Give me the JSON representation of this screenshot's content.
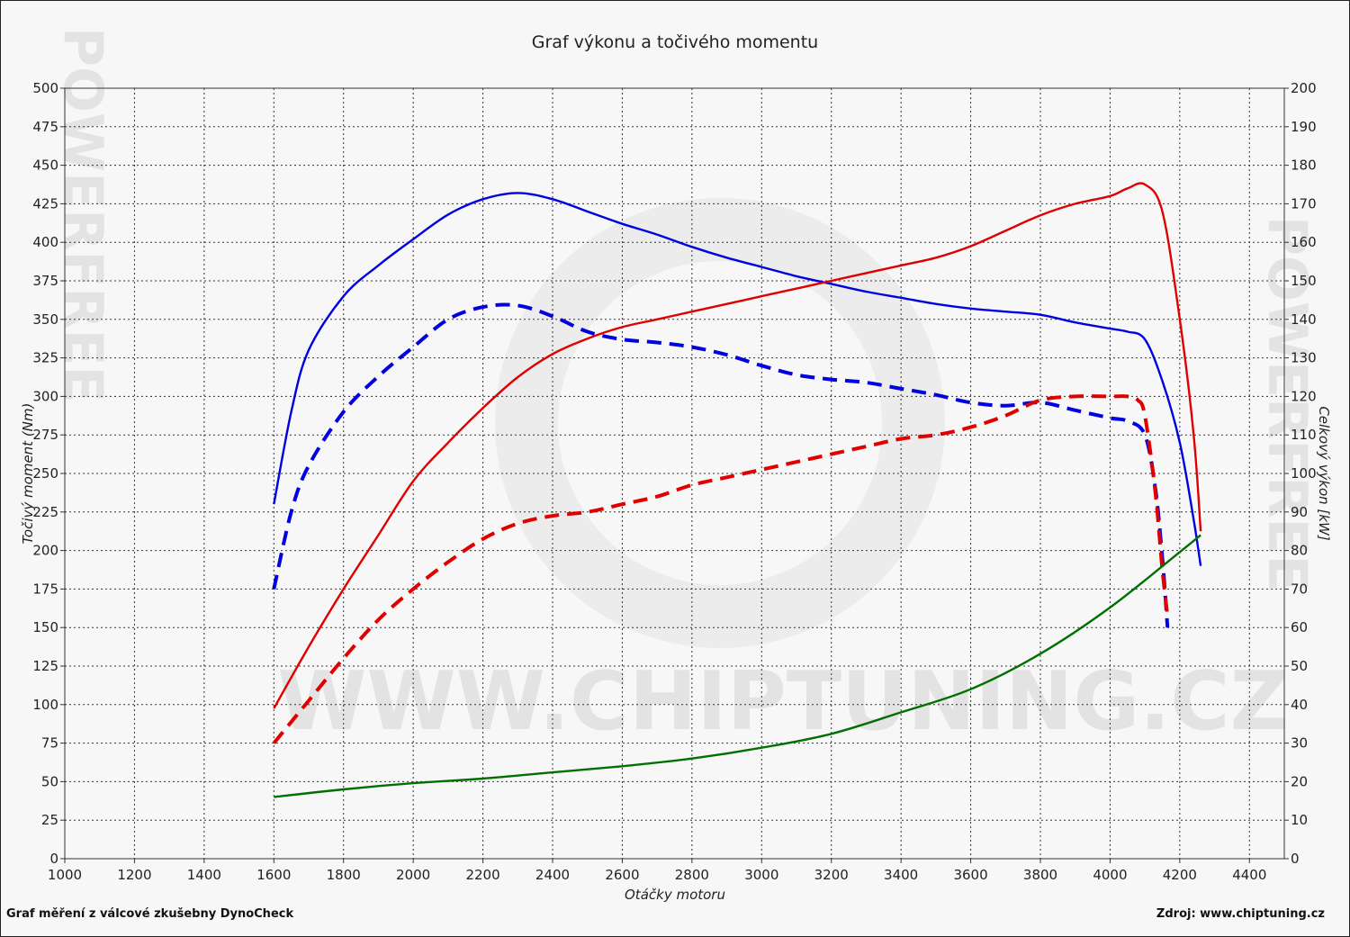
{
  "chart_data": {
    "type": "line",
    "title": "Graf výkonu a točivého momentu",
    "xlabel": "Otáčky motoru",
    "ylabel_left": "Točivý moment (Nm)",
    "ylabel_right": "Celkový výkon [kW]",
    "xlim": [
      1000,
      4500
    ],
    "ylim_left": [
      0,
      500
    ],
    "ylim_right": [
      0,
      200
    ],
    "x_ticks": [
      1000,
      1200,
      1400,
      1600,
      1800,
      2000,
      2200,
      2400,
      2600,
      2800,
      3000,
      3200,
      3400,
      3600,
      3800,
      4000,
      4200,
      4400
    ],
    "y_left_ticks": [
      0,
      25,
      50,
      75,
      100,
      125,
      150,
      175,
      200,
      225,
      250,
      275,
      300,
      325,
      350,
      375,
      400,
      425,
      450,
      475,
      500
    ],
    "y_right_ticks": [
      0,
      10,
      20,
      30,
      40,
      50,
      60,
      70,
      80,
      90,
      100,
      110,
      120,
      130,
      140,
      150,
      160,
      170,
      180,
      190,
      200
    ],
    "grid": true,
    "legend": "none",
    "series": [
      {
        "axis": "left",
        "style": "solid",
        "color": "#0000e0",
        "x": [
          1600,
          1650,
          1700,
          1800,
          1900,
          2000,
          2100,
          2200,
          2300,
          2400,
          2500,
          2600,
          2700,
          2800,
          2900,
          3000,
          3100,
          3200,
          3300,
          3400,
          3500,
          3600,
          3700,
          3800,
          3900,
          4000,
          4050,
          4100,
          4150,
          4200,
          4240,
          4260
        ],
        "y": [
          230,
          290,
          330,
          365,
          385,
          402,
          418,
          428,
          432,
          428,
          420,
          412,
          405,
          397,
          390,
          384,
          378,
          373,
          368,
          364,
          360,
          357,
          355,
          353,
          348,
          344,
          342,
          337,
          310,
          270,
          220,
          190
        ]
      },
      {
        "axis": "left",
        "style": "dashed",
        "color": "#0000e0",
        "x": [
          1600,
          1650,
          1700,
          1800,
          1900,
          2000,
          2100,
          2200,
          2300,
          2400,
          2500,
          2600,
          2700,
          2800,
          2900,
          3000,
          3100,
          3200,
          3300,
          3400,
          3500,
          3600,
          3700,
          3800,
          3900,
          4000,
          4050,
          4100,
          4130,
          4150,
          4165
        ],
        "y": [
          175,
          225,
          255,
          290,
          313,
          332,
          350,
          358,
          359,
          352,
          342,
          337,
          335,
          332,
          327,
          320,
          314,
          311,
          309,
          305,
          301,
          296,
          294,
          296,
          291,
          286,
          284,
          275,
          240,
          195,
          150
        ]
      },
      {
        "axis": "right",
        "style": "solid",
        "color": "#e00000",
        "x": [
          1600,
          1700,
          1800,
          1900,
          2000,
          2100,
          2200,
          2300,
          2400,
          2500,
          2600,
          2700,
          2800,
          2900,
          3000,
          3100,
          3200,
          3300,
          3400,
          3500,
          3600,
          3700,
          3800,
          3900,
          4000,
          4050,
          4100,
          4150,
          4200,
          4240,
          4260
        ],
        "y": [
          39,
          55,
          70,
          84,
          98,
          108,
          117,
          125,
          131,
          135,
          138,
          140,
          142,
          144,
          146,
          148,
          150,
          152,
          154,
          156,
          159,
          163,
          167,
          170,
          172,
          174,
          175,
          168,
          140,
          110,
          85
        ]
      },
      {
        "axis": "right",
        "style": "dashed",
        "color": "#e00000",
        "x": [
          1600,
          1700,
          1800,
          1900,
          2000,
          2100,
          2200,
          2300,
          2400,
          2500,
          2600,
          2700,
          2800,
          2900,
          3000,
          3100,
          3200,
          3300,
          3400,
          3500,
          3600,
          3700,
          3800,
          3900,
          4000,
          4050,
          4080,
          4100,
          4130,
          4150,
          4165
        ],
        "y": [
          30,
          41,
          52,
          62,
          70,
          77,
          83,
          87,
          89,
          90,
          92,
          94,
          97,
          99,
          101,
          103,
          105,
          107,
          109,
          110,
          112,
          115,
          119,
          120,
          120,
          120,
          119,
          115,
          95,
          75,
          63
        ]
      },
      {
        "axis": "left",
        "style": "solid",
        "color": "#007000",
        "x": [
          1600,
          1800,
          2000,
          2200,
          2400,
          2600,
          2800,
          3000,
          3200,
          3400,
          3600,
          3800,
          4000,
          4200,
          4260
        ],
        "y": [
          40,
          45,
          49,
          52,
          56,
          60,
          65,
          72,
          81,
          95,
          110,
          133,
          163,
          199,
          210
        ]
      }
    ]
  },
  "footer": {
    "left": "Graf měření z válcové zkušebny DynoCheck",
    "right": "Zdroj: www.chiptuning.cz"
  },
  "watermark": {
    "text": "WWW.CHIPTUNING.CZ",
    "side_text": "POWERFREE"
  }
}
